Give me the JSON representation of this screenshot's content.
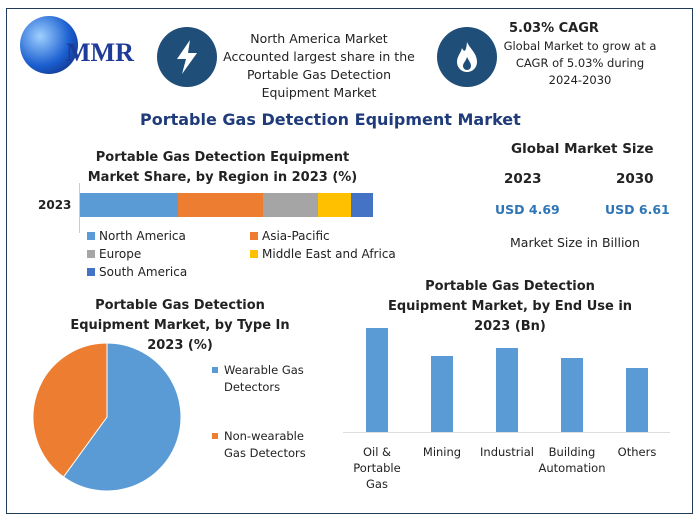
{
  "header": {
    "logo_text": "MMR",
    "highlight1": "North America Market Accounted largest share in the Portable Gas Detection Equipment Market",
    "cagr_title": "5.03% CAGR",
    "cagr_text": "Global Market to grow at a CAGR of 5.03% during 2024-2030"
  },
  "main_title": "Portable Gas Detection Equipment Market",
  "market_size": {
    "title": "Global Market Size",
    "year1": "2023",
    "year2": "2030",
    "value1": "USD 4.69",
    "value2": "USD 6.61",
    "note": "Market Size in Billion"
  },
  "colors": {
    "accent": "#1f3b7a",
    "value_blue": "#2e75b6"
  },
  "chart_data": [
    {
      "type": "bar",
      "orientation": "horizontal-stacked",
      "title": "Portable Gas Detection Equipment Market Share, by Region in 2023 (%)",
      "categories": [
        "2023"
      ],
      "series": [
        {
          "name": "North America",
          "values": [
            33.4
          ],
          "color": "#5b9bd5"
        },
        {
          "name": "Asia-Pacific",
          "values": [
            29.0
          ],
          "color": "#ed7d31"
        },
        {
          "name": "Europe",
          "values": [
            18.8
          ],
          "color": "#a5a5a5"
        },
        {
          "name": "Middle East and Africa",
          "values": [
            11.3
          ],
          "color": "#ffc000"
        },
        {
          "name": "South America",
          "values": [
            7.5
          ],
          "color": "#4472c4"
        }
      ],
      "legend": "bottom"
    },
    {
      "type": "pie",
      "title": "Portable Gas Detection Equipment Market, by Type In 2023 (%)",
      "slices": [
        {
          "name": "Wearable Gas Detectors",
          "value": 60,
          "color": "#5b9bd5"
        },
        {
          "name": "Non-wearable Gas Detectors",
          "value": 40,
          "color": "#ed7d31"
        }
      ],
      "legend": "right"
    },
    {
      "type": "bar",
      "title": "Portable Gas Detection Equipment Market, by End Use in 2023 (Bn)",
      "categories": [
        "Oil & Portable Gas",
        "Mining",
        "Industrial",
        "Building Automation",
        "Others"
      ],
      "values": [
        1.21,
        0.89,
        0.98,
        0.86,
        0.75
      ],
      "color": "#5b9bd5",
      "ylim": [
        0,
        1.3
      ]
    }
  ]
}
